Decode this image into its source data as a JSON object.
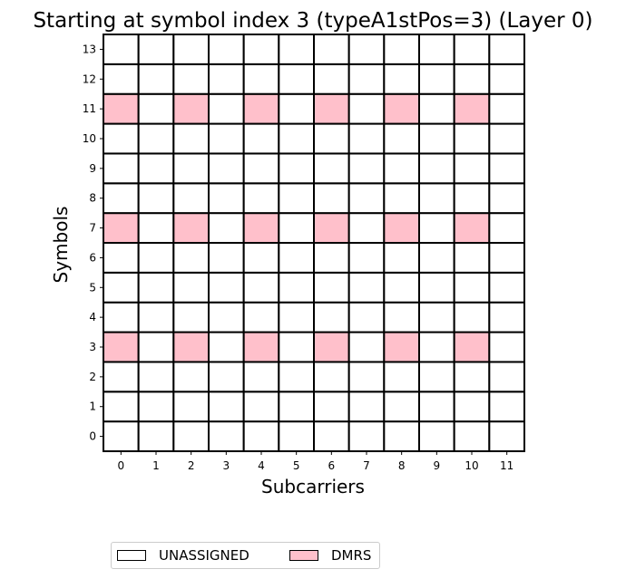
{
  "chart_data": {
    "type": "heatmap",
    "title": "Starting at symbol index 3 (typeA1stPos=3) (Layer 0)",
    "xlabel": "Subcarriers",
    "ylabel": "Symbols",
    "x_ticks": [
      "0",
      "1",
      "2",
      "3",
      "4",
      "5",
      "6",
      "7",
      "8",
      "9",
      "10",
      "11"
    ],
    "y_ticks": [
      "0",
      "1",
      "2",
      "3",
      "4",
      "5",
      "6",
      "7",
      "8",
      "9",
      "10",
      "11",
      "12",
      "13"
    ],
    "categories": [
      "UNASSIGNED",
      "DMRS"
    ],
    "colors": {
      "UNASSIGNED": "#ffffff",
      "DMRS": "#ffc0cb"
    },
    "dmrs_symbols": [
      3,
      7,
      11
    ],
    "dmrs_subcarriers": [
      0,
      2,
      4,
      6,
      8,
      10
    ],
    "legend": {
      "placement": "bottom",
      "entries": [
        {
          "label": "UNASSIGNED",
          "color": "#ffffff"
        },
        {
          "label": "DMRS",
          "color": "#ffc0cb"
        }
      ]
    }
  }
}
